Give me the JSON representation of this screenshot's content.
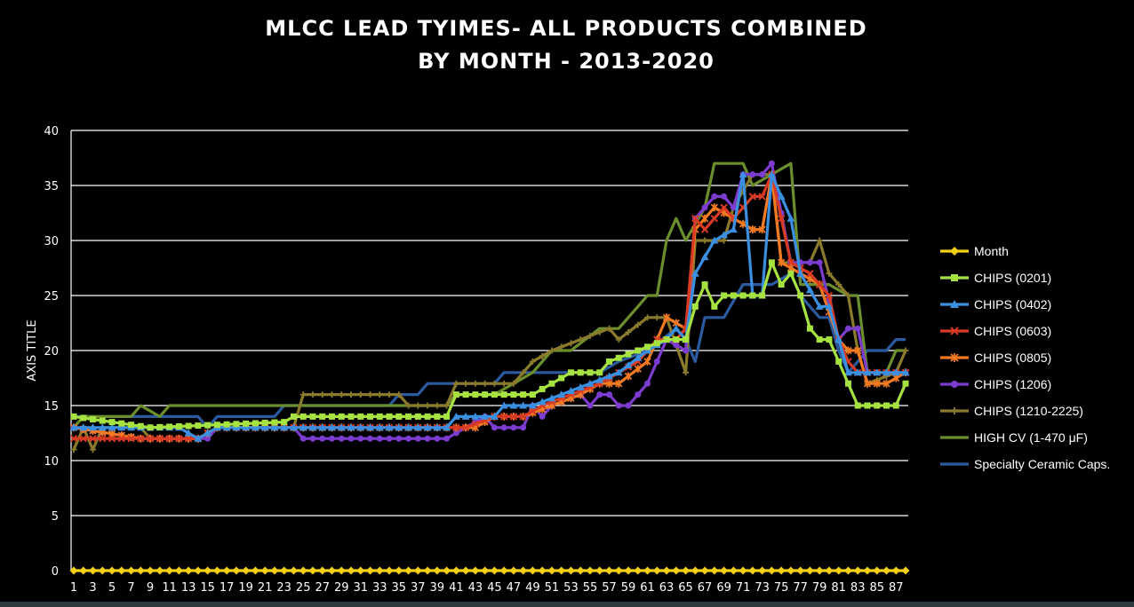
{
  "chart_data": {
    "type": "line",
    "title": "MLCC LEAD TYIMES- ALL PRODUCTS COMBINED",
    "subtitle": "BY MONTH - 2013-2020",
    "xlabel": "",
    "ylabel": "AXIS TITLE",
    "ylim": [
      0,
      40
    ],
    "yticks": [
      0,
      5,
      10,
      15,
      20,
      25,
      30,
      35,
      40
    ],
    "xlim": [
      1,
      88
    ],
    "xticks": [
      1,
      3,
      5,
      7,
      9,
      11,
      13,
      15,
      17,
      19,
      21,
      23,
      25,
      27,
      29,
      31,
      33,
      35,
      37,
      39,
      41,
      43,
      45,
      47,
      49,
      51,
      53,
      55,
      57,
      59,
      61,
      63,
      65,
      67,
      69,
      71,
      73,
      75,
      77,
      79,
      81,
      83,
      85,
      87
    ],
    "grid": "horizontal",
    "legend_position": "right",
    "series": [
      {
        "name": "Month",
        "color": "#f5d016",
        "marker": "diamond",
        "knots": [
          [
            1,
            0
          ],
          [
            88,
            0
          ]
        ]
      },
      {
        "name": "CHIPS (0201)",
        "color": "#a7e340",
        "marker": "square",
        "knots": [
          [
            1,
            14
          ],
          [
            9,
            13
          ],
          [
            23,
            13.5
          ],
          [
            24,
            14
          ],
          [
            40,
            14
          ],
          [
            41,
            16
          ],
          [
            49,
            16
          ],
          [
            51,
            17
          ],
          [
            53,
            18
          ],
          [
            56,
            18
          ],
          [
            57,
            19
          ],
          [
            60,
            20
          ],
          [
            63,
            21
          ],
          [
            65,
            21
          ],
          [
            66,
            24
          ],
          [
            67,
            26
          ],
          [
            68,
            24
          ],
          [
            69,
            25
          ],
          [
            73,
            25
          ],
          [
            74,
            28
          ],
          [
            75,
            26
          ],
          [
            76,
            27
          ],
          [
            77,
            25
          ],
          [
            78,
            22
          ],
          [
            79,
            21
          ],
          [
            80,
            21
          ],
          [
            81,
            19
          ],
          [
            82,
            17
          ],
          [
            83,
            15
          ],
          [
            87,
            15
          ],
          [
            88,
            17
          ]
        ]
      },
      {
        "name": "CHIPS (0402)",
        "color": "#3b8fe0",
        "marker": "triangle",
        "knots": [
          [
            1,
            13
          ],
          [
            8,
            13
          ],
          [
            12,
            13
          ],
          [
            14,
            12
          ],
          [
            16,
            13
          ],
          [
            40,
            13
          ],
          [
            41,
            14
          ],
          [
            43,
            14
          ],
          [
            45,
            14
          ],
          [
            46,
            15
          ],
          [
            49,
            15
          ],
          [
            52,
            16
          ],
          [
            55,
            17
          ],
          [
            58,
            18
          ],
          [
            61,
            20
          ],
          [
            63,
            21
          ],
          [
            64,
            22
          ],
          [
            65,
            21
          ],
          [
            66,
            27
          ],
          [
            68,
            30
          ],
          [
            70,
            31
          ],
          [
            71,
            36
          ],
          [
            72,
            25
          ],
          [
            73,
            25
          ],
          [
            74,
            36
          ],
          [
            76,
            32
          ],
          [
            77,
            27
          ],
          [
            79,
            24
          ],
          [
            80,
            24
          ],
          [
            82,
            18
          ],
          [
            88,
            18
          ]
        ]
      },
      {
        "name": "CHIPS (0603)",
        "color": "#d83a24",
        "marker": "x",
        "knots": [
          [
            1,
            12
          ],
          [
            8,
            12
          ],
          [
            14,
            12
          ],
          [
            16,
            13
          ],
          [
            40,
            13
          ],
          [
            42,
            13
          ],
          [
            45,
            14
          ],
          [
            48,
            14
          ],
          [
            50,
            15
          ],
          [
            53,
            16
          ],
          [
            56,
            17
          ],
          [
            58,
            18
          ],
          [
            60,
            19
          ],
          [
            62,
            21
          ],
          [
            64,
            21
          ],
          [
            65,
            22
          ],
          [
            66,
            32
          ],
          [
            67,
            31
          ],
          [
            69,
            33
          ],
          [
            70,
            32
          ],
          [
            72,
            34
          ],
          [
            73,
            34
          ],
          [
            74,
            36
          ],
          [
            76,
            28
          ],
          [
            78,
            27
          ],
          [
            80,
            25
          ],
          [
            81,
            21
          ],
          [
            82,
            19
          ],
          [
            83,
            18
          ],
          [
            86,
            18
          ],
          [
            88,
            18
          ]
        ]
      },
      {
        "name": "CHIPS (0805)",
        "color": "#f27a22",
        "marker": "asterisk",
        "knots": [
          [
            1,
            13
          ],
          [
            8,
            12
          ],
          [
            14,
            12
          ],
          [
            16,
            13
          ],
          [
            41,
            13
          ],
          [
            43,
            13
          ],
          [
            45,
            14
          ],
          [
            48,
            14
          ],
          [
            51,
            15
          ],
          [
            54,
            16
          ],
          [
            56,
            17
          ],
          [
            58,
            17
          ],
          [
            61,
            19
          ],
          [
            63,
            23
          ],
          [
            65,
            22
          ],
          [
            66,
            31
          ],
          [
            68,
            33
          ],
          [
            70,
            32
          ],
          [
            72,
            31
          ],
          [
            73,
            31
          ],
          [
            74,
            36
          ],
          [
            75,
            28
          ],
          [
            77,
            27
          ],
          [
            79,
            26
          ],
          [
            81,
            21
          ],
          [
            82,
            20
          ],
          [
            83,
            20
          ],
          [
            84,
            17
          ],
          [
            86,
            17
          ],
          [
            88,
            18
          ]
        ]
      },
      {
        "name": "CHIPS (1206)",
        "color": "#7b3ccf",
        "marker": "circle",
        "knots": [
          [
            1,
            13
          ],
          [
            8,
            12
          ],
          [
            15,
            12
          ],
          [
            16,
            13
          ],
          [
            24,
            13
          ],
          [
            25,
            12
          ],
          [
            40,
            12
          ],
          [
            42,
            13
          ],
          [
            44,
            14
          ],
          [
            45,
            13
          ],
          [
            48,
            13
          ],
          [
            49,
            15
          ],
          [
            50,
            14
          ],
          [
            51,
            15
          ],
          [
            54,
            16
          ],
          [
            55,
            15
          ],
          [
            56,
            16
          ],
          [
            57,
            16
          ],
          [
            58,
            15
          ],
          [
            59,
            15
          ],
          [
            61,
            17
          ],
          [
            63,
            21
          ],
          [
            65,
            20
          ],
          [
            66,
            32
          ],
          [
            68,
            34
          ],
          [
            69,
            34
          ],
          [
            70,
            33
          ],
          [
            71,
            36
          ],
          [
            73,
            36
          ],
          [
            74,
            37
          ],
          [
            76,
            28
          ],
          [
            79,
            28
          ],
          [
            81,
            21
          ],
          [
            82,
            22
          ],
          [
            83,
            22
          ],
          [
            84,
            18
          ],
          [
            87,
            18
          ],
          [
            88,
            18
          ]
        ]
      },
      {
        "name": "CHIPS (1210-2225)",
        "color": "#8a7a2c",
        "marker": "plus",
        "knots": [
          [
            1,
            11
          ],
          [
            2,
            13
          ],
          [
            3,
            11
          ],
          [
            4,
            13
          ],
          [
            8,
            13
          ],
          [
            9,
            12
          ],
          [
            14,
            12
          ],
          [
            16,
            13
          ],
          [
            24,
            13
          ],
          [
            25,
            16
          ],
          [
            35,
            16
          ],
          [
            36,
            15
          ],
          [
            40,
            15
          ],
          [
            41,
            17
          ],
          [
            47,
            17
          ],
          [
            48,
            18
          ],
          [
            49,
            19
          ],
          [
            51,
            20
          ],
          [
            54,
            21
          ],
          [
            57,
            22
          ],
          [
            58,
            21
          ],
          [
            61,
            23
          ],
          [
            63,
            23
          ],
          [
            65,
            18
          ],
          [
            66,
            30
          ],
          [
            67,
            30
          ],
          [
            69,
            30
          ],
          [
            70,
            33
          ],
          [
            72,
            36
          ],
          [
            74,
            36
          ],
          [
            75,
            28
          ],
          [
            78,
            28
          ],
          [
            79,
            30
          ],
          [
            80,
            27
          ],
          [
            82,
            25
          ],
          [
            83,
            20
          ],
          [
            84,
            17
          ],
          [
            87,
            18
          ],
          [
            88,
            20
          ]
        ]
      },
      {
        "name": "HIGH CV (1-470 μF)",
        "color": "#6b8f2c",
        "marker": "none",
        "knots": [
          [
            1,
            13
          ],
          [
            2,
            14
          ],
          [
            7,
            14
          ],
          [
            8,
            15
          ],
          [
            10,
            14
          ],
          [
            11,
            15
          ],
          [
            24,
            15
          ],
          [
            25,
            15
          ],
          [
            35,
            15
          ],
          [
            36,
            15
          ],
          [
            40,
            15
          ],
          [
            41,
            16
          ],
          [
            45,
            16
          ],
          [
            47,
            17
          ],
          [
            49,
            18
          ],
          [
            51,
            20
          ],
          [
            53,
            20
          ],
          [
            56,
            22
          ],
          [
            58,
            22
          ],
          [
            61,
            25
          ],
          [
            62,
            25
          ],
          [
            63,
            30
          ],
          [
            64,
            32
          ],
          [
            65,
            30
          ],
          [
            67,
            33
          ],
          [
            68,
            37
          ],
          [
            71,
            37
          ],
          [
            72,
            35
          ],
          [
            76,
            37
          ],
          [
            77,
            26
          ],
          [
            80,
            26
          ],
          [
            82,
            25
          ],
          [
            83,
            25
          ],
          [
            84,
            18
          ],
          [
            86,
            18
          ],
          [
            87,
            20
          ],
          [
            88,
            20
          ]
        ]
      },
      {
        "name": "Specialty Ceramic Caps.",
        "color": "#2c5aa0",
        "marker": "none",
        "knots": [
          [
            1,
            14
          ],
          [
            14,
            14
          ],
          [
            15,
            13
          ],
          [
            16,
            14
          ],
          [
            22,
            14
          ],
          [
            23,
            15
          ],
          [
            34,
            15
          ],
          [
            35,
            16
          ],
          [
            37,
            16
          ],
          [
            38,
            17
          ],
          [
            45,
            17
          ],
          [
            46,
            18
          ],
          [
            56,
            18
          ],
          [
            58,
            19
          ],
          [
            61,
            20
          ],
          [
            64,
            22
          ],
          [
            65,
            21
          ],
          [
            66,
            19
          ],
          [
            67,
            23
          ],
          [
            69,
            23
          ],
          [
            71,
            26
          ],
          [
            73,
            26
          ],
          [
            74,
            26
          ],
          [
            76,
            27
          ],
          [
            77,
            25
          ],
          [
            79,
            23
          ],
          [
            80,
            23
          ],
          [
            81,
            20
          ],
          [
            82,
            18
          ],
          [
            83,
            19
          ],
          [
            84,
            20
          ],
          [
            86,
            20
          ],
          [
            87,
            21
          ],
          [
            88,
            21
          ]
        ]
      }
    ]
  }
}
